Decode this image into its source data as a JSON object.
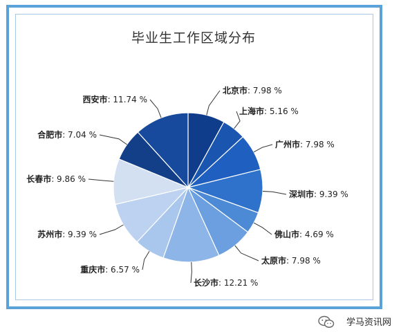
{
  "chart_data": {
    "type": "pie",
    "title": "毕业生工作区域分布",
    "slices": [
      {
        "label": "北京市",
        "value": 7.98,
        "value_text": "7.98 %",
        "color": "#0f3d8c"
      },
      {
        "label": "上海市",
        "value": 5.16,
        "value_text": "5.16 %",
        "color": "#1a56b0"
      },
      {
        "label": "广州市",
        "value": 7.98,
        "value_text": "7.98 %",
        "color": "#1f5fbf"
      },
      {
        "label": "深圳市",
        "value": 9.39,
        "value_text": "9.39 %",
        "color": "#2f72cc"
      },
      {
        "label": "佛山市",
        "value": 4.69,
        "value_text": "4.69 %",
        "color": "#4d8ad6"
      },
      {
        "label": "太原市",
        "value": 7.98,
        "value_text": "7.98 %",
        "color": "#6b9fdf"
      },
      {
        "label": "长沙市",
        "value": 12.21,
        "value_text": "12.21 %",
        "color": "#8db5e8"
      },
      {
        "label": "重庆市",
        "value": 6.57,
        "value_text": "6.57 %",
        "color": "#a9c6ed"
      },
      {
        "label": "苏州市",
        "value": 9.39,
        "value_text": "9.39 %",
        "color": "#bcd2f0"
      },
      {
        "label": "长春市",
        "value": 9.86,
        "value_text": "9.86 %",
        "color": "#d3e0f2"
      },
      {
        "label": "合肥市",
        "value": 7.04,
        "value_text": "7.04 %",
        "color": "#123f87"
      },
      {
        "label": "西安市",
        "value": 11.74,
        "value_text": "11.74 %",
        "color": "#174a9c"
      }
    ],
    "legend": "none",
    "label_style": "outside-with-leader-lines"
  },
  "watermark": {
    "text": "学马资讯网",
    "icon": "wechat-icon"
  }
}
